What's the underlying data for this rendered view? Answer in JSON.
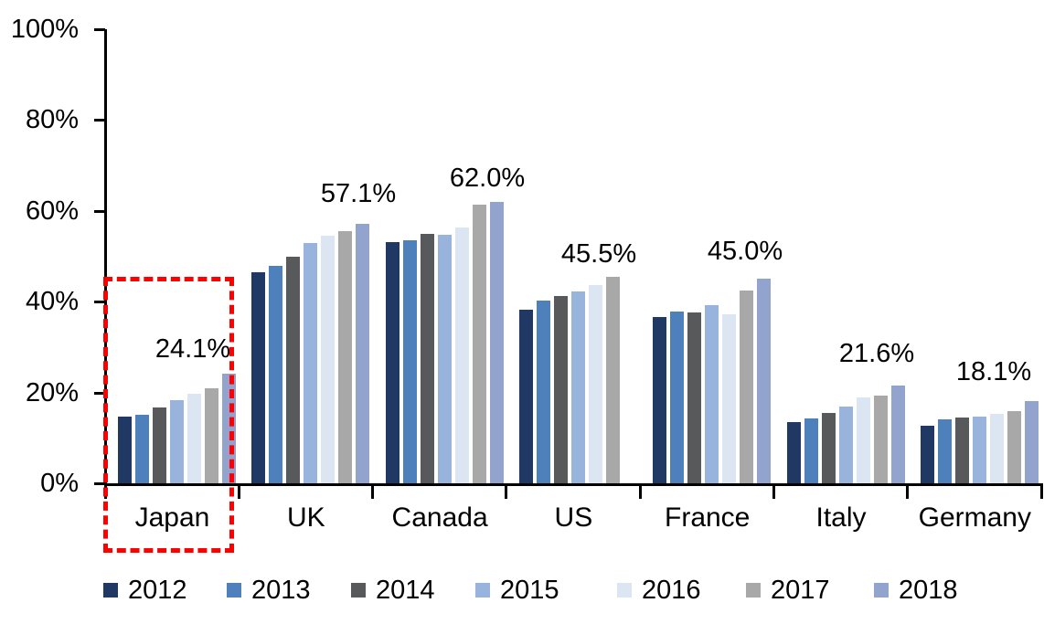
{
  "chart_data": {
    "type": "bar",
    "title": "",
    "categories": [
      "Japan",
      "UK",
      "Canada",
      "US",
      "France",
      "Italy",
      "Germany"
    ],
    "series": [
      {
        "name": "2012",
        "color": "#1F3864",
        "values": [
          14.7,
          46.4,
          53.1,
          38.2,
          36.7,
          13.4,
          12.6
        ]
      },
      {
        "name": "2013",
        "color": "#4E80BC",
        "values": [
          15.0,
          47.8,
          53.6,
          40.2,
          37.8,
          14.2,
          14.0
        ]
      },
      {
        "name": "2014",
        "color": "#58595B",
        "values": [
          16.7,
          49.8,
          55.0,
          41.2,
          37.7,
          15.4,
          14.4
        ]
      },
      {
        "name": "2015",
        "color": "#98B4DC",
        "values": [
          18.3,
          53.0,
          54.8,
          42.3,
          39.2,
          16.9,
          14.7
        ]
      },
      {
        "name": "2016",
        "color": "#DCE6F2",
        "values": [
          19.8,
          54.6,
          56.3,
          43.7,
          37.3,
          19.0,
          15.3
        ]
      },
      {
        "name": "2017",
        "color": "#A8A8A8",
        "values": [
          21.0,
          55.6,
          61.4,
          45.5,
          42.4,
          19.3,
          15.9
        ]
      },
      {
        "name": "2018",
        "color": "#92A3CD",
        "values": [
          24.1,
          57.1,
          62.0,
          null,
          45.0,
          21.6,
          18.1
        ]
      }
    ],
    "data_labels": [
      "24.1%",
      "57.1%",
      "62.0%",
      "45.5%",
      "45.0%",
      "21.6%",
      "18.1%"
    ],
    "y_axis": {
      "ticks": [
        "0%",
        "20%",
        "40%",
        "60%",
        "80%",
        "100%"
      ],
      "min": 0,
      "max": 100,
      "grid": false
    },
    "legend": {
      "position": "bottom",
      "entries": [
        "2012",
        "2013",
        "2014",
        "2015",
        "2016",
        "2017",
        "2018"
      ]
    },
    "annotations": {
      "highlight_box": {
        "category": "Japan",
        "color": "#FF0000",
        "style": "dashed"
      }
    }
  }
}
